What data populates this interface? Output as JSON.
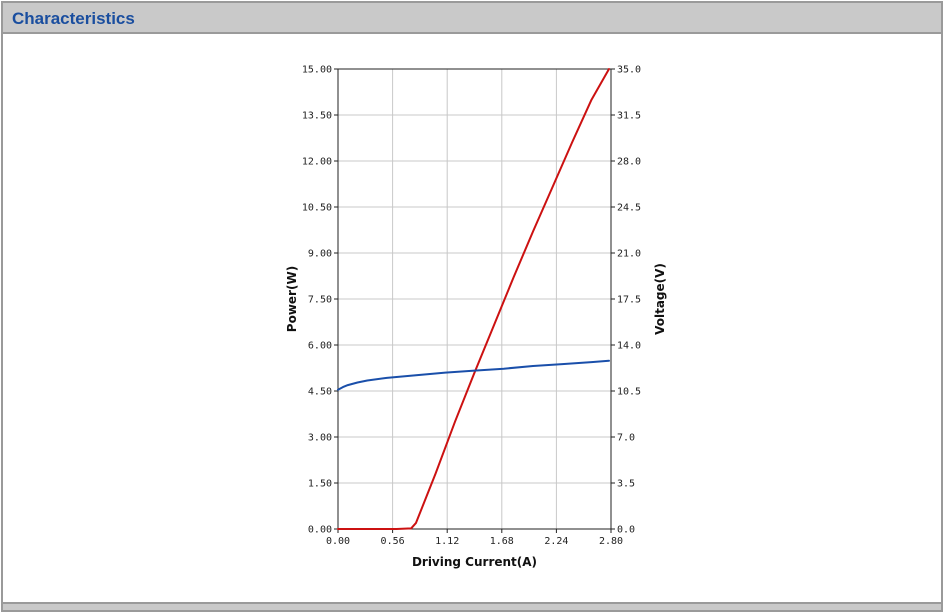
{
  "panel": {
    "title": "Characteristics"
  },
  "chart_data": {
    "type": "line",
    "xlabel": "Driving Current(A)",
    "ylabel": "Power(W)",
    "y2label": "Voltage(V)",
    "xlim": [
      0,
      2.8
    ],
    "ylim": [
      0,
      15
    ],
    "y2lim": [
      0,
      35
    ],
    "grid": true,
    "xticks": [
      "0.00",
      "0.56",
      "1.12",
      "1.68",
      "2.24",
      "2.80"
    ],
    "xtick_values": [
      0,
      0.56,
      1.12,
      1.68,
      2.24,
      2.8
    ],
    "yticks": [
      "0.00",
      "1.50",
      "3.00",
      "4.50",
      "6.00",
      "7.50",
      "9.00",
      "10.50",
      "12.00",
      "13.50",
      "15.00"
    ],
    "ytick_values": [
      0,
      1.5,
      3,
      4.5,
      6,
      7.5,
      9,
      10.5,
      12,
      13.5,
      15
    ],
    "y2ticks": [
      "0.0",
      "3.5",
      "7.0",
      "10.5",
      "14.0",
      "17.5",
      "21.0",
      "24.5",
      "28.0",
      "31.5",
      "35.0"
    ],
    "y2tick_values": [
      0,
      3.5,
      7,
      10.5,
      14,
      17.5,
      21,
      24.5,
      28,
      31.5,
      35
    ],
    "series": [
      {
        "axis": "left",
        "color": "#cc1111",
        "x": [
          0,
          0.3,
          0.6,
          0.75,
          0.8,
          1.0,
          1.2,
          1.4,
          1.6,
          1.8,
          2.0,
          2.2,
          2.4,
          2.6,
          2.78
        ],
        "y": [
          0,
          0,
          0,
          0.02,
          0.2,
          1.8,
          3.5,
          5.1,
          6.65,
          8.2,
          9.7,
          11.15,
          12.6,
          14.0,
          15.0
        ]
      },
      {
        "axis": "right",
        "color": "#1a4faa",
        "x": [
          0,
          0.05,
          0.1,
          0.2,
          0.3,
          0.5,
          0.8,
          1.1,
          1.4,
          1.7,
          2.0,
          2.3,
          2.6,
          2.78
        ],
        "y": [
          10.6,
          10.8,
          10.95,
          11.15,
          11.3,
          11.5,
          11.7,
          11.9,
          12.05,
          12.2,
          12.4,
          12.55,
          12.7,
          12.8
        ]
      }
    ]
  }
}
